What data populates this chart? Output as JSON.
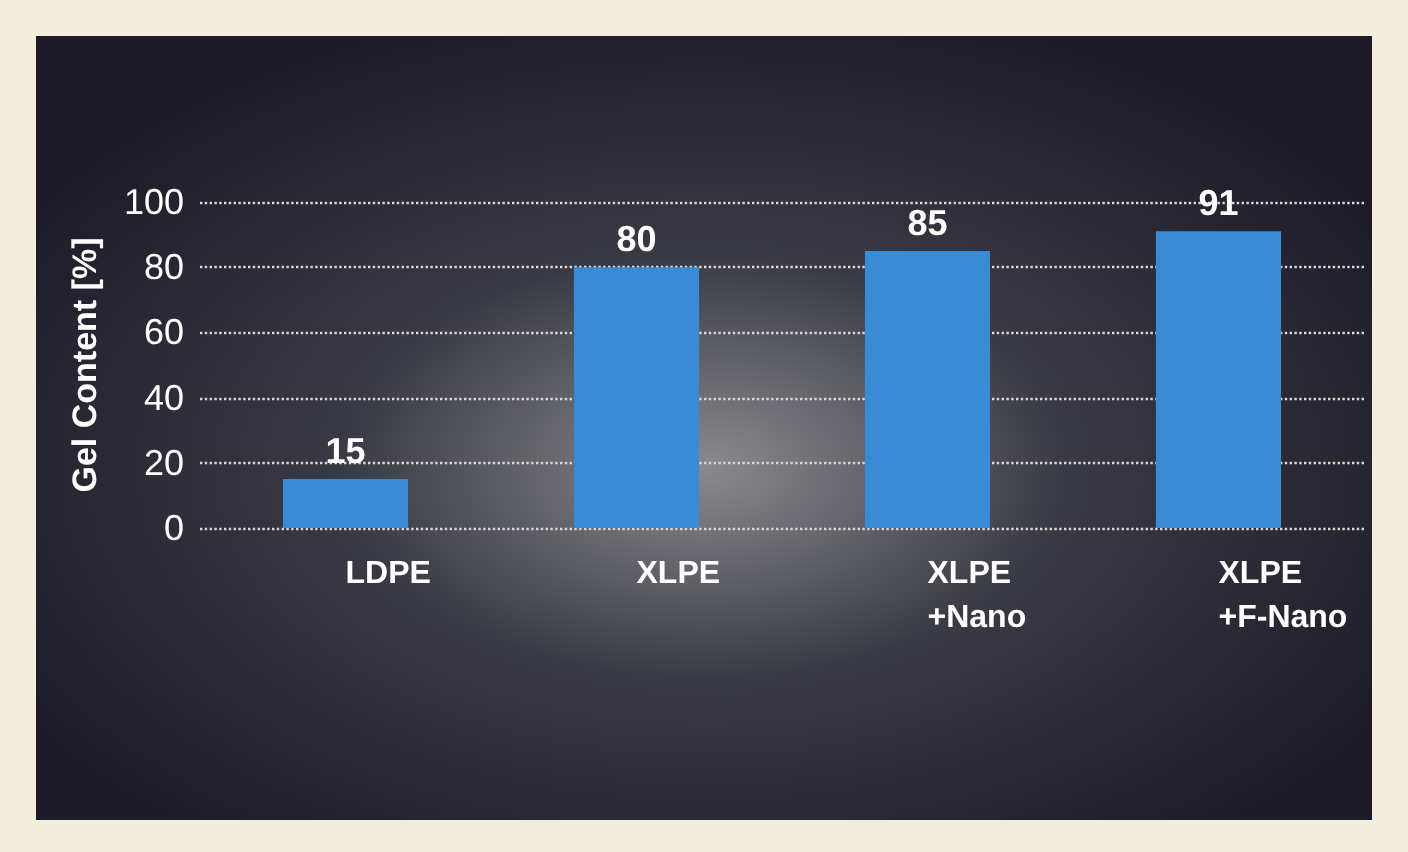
{
  "chart_data": {
    "type": "bar",
    "ylabel": "Gel Content [%]",
    "categories": [
      "LDPE",
      "XLPE",
      "XLPE\n+Nano",
      "XLPE\n+F-Nano"
    ],
    "values": [
      15,
      80,
      85,
      91
    ],
    "color": "#3a8bd6",
    "ylim": [
      0,
      100
    ],
    "yticks": [
      0,
      20,
      40,
      60,
      80,
      100
    ],
    "grid": "y",
    "data_labels": true
  }
}
